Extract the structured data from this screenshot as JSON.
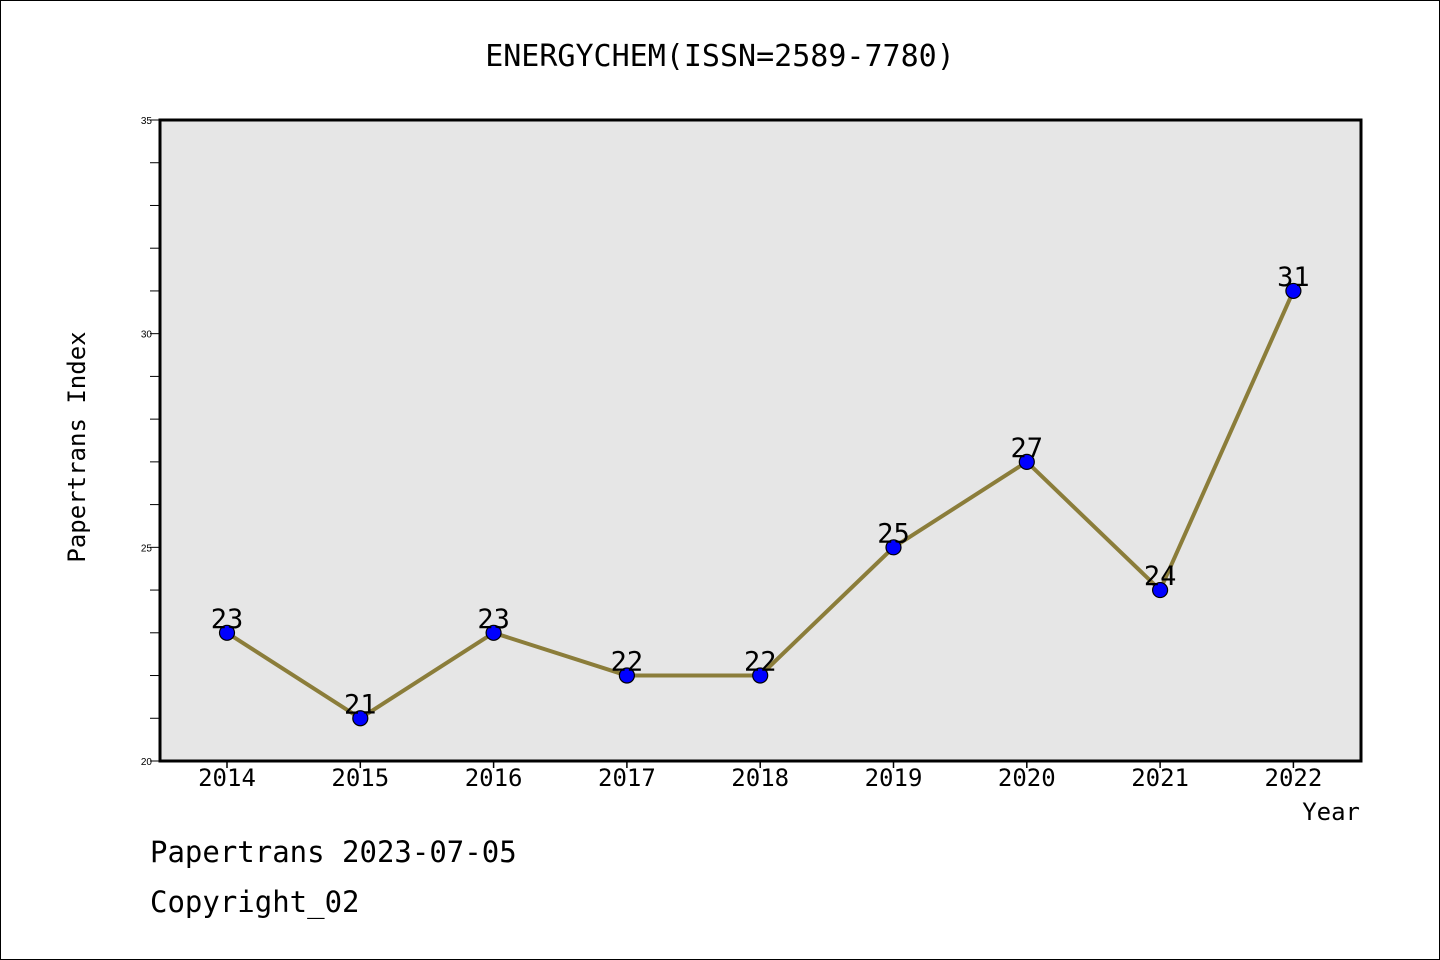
{
  "chart_data": {
    "type": "line",
    "title": "ENERGYCHEM(ISSN=2589-7780)",
    "xlabel": "Year",
    "ylabel": "Papertrans Index",
    "categories": [
      "2014",
      "2015",
      "2016",
      "2017",
      "2018",
      "2019",
      "2020",
      "2021",
      "2022"
    ],
    "series": [
      {
        "values": [
          23,
          21,
          23,
          22,
          22,
          25,
          27,
          24,
          31
        ]
      }
    ],
    "ylim": [
      20,
      35
    ],
    "yticks": [
      20,
      25,
      30,
      35
    ],
    "y_minor_step": 1,
    "grid": false,
    "plot_background": "#e6e6e6",
    "line_color": "#8b7d3a",
    "marker_color": "#0000ff",
    "data_labels": true
  },
  "footer": {
    "line1": "Papertrans 2023-07-05",
    "line2": "Copyright_02"
  }
}
